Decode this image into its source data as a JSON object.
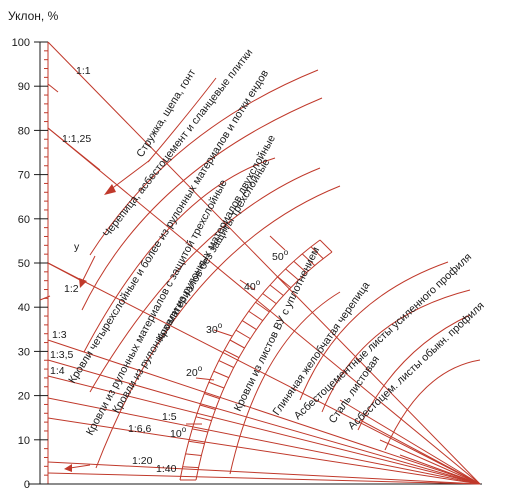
{
  "axis": {
    "title": "Уклон, %",
    "ticks": [
      "0",
      "10",
      "20",
      "30",
      "40",
      "50",
      "60",
      "70",
      "80",
      "90",
      "100"
    ]
  },
  "slope_ratios": [
    {
      "id": "r-1-1",
      "text": "1:1"
    },
    {
      "id": "r-1-125",
      "text": "1:1,25"
    },
    {
      "id": "r-y",
      "text": "y"
    },
    {
      "id": "r-1-2",
      "text": "1:2"
    },
    {
      "id": "r-1-3",
      "text": "1:3"
    },
    {
      "id": "r-1-35",
      "text": "1:3,5"
    },
    {
      "id": "r-1-4",
      "text": "1:4"
    },
    {
      "id": "r-1-5",
      "text": "1:5"
    },
    {
      "id": "r-1-66",
      "text": "1:6,6"
    },
    {
      "id": "r-1-20",
      "text": "1:20"
    },
    {
      "id": "r-1-40",
      "text": "1:40"
    }
  ],
  "degrees": [
    {
      "id": "d-50",
      "value": "50",
      "sup": "o"
    },
    {
      "id": "d-40",
      "value": "40",
      "sup": "o"
    },
    {
      "id": "d-30",
      "value": "30",
      "sup": "o"
    },
    {
      "id": "d-20",
      "value": "20",
      "sup": "o"
    },
    {
      "id": "d-10",
      "value": "10",
      "sup": "o"
    }
  ],
  "roof_types": [
    {
      "id": "shavings",
      "text": "Стружка, щепа, гонт"
    },
    {
      "id": "tiles",
      "text": "Черепица, асбестоцемент и сланцевые плитки"
    },
    {
      "id": "rolled-4",
      "text": "Кровли четырехслойные и более из рулонных материалов и потки ендов"
    },
    {
      "id": "rolled-3-prot",
      "text": "Кровли из рулонных материалов с защитой трехслойные"
    },
    {
      "id": "rolled-3-noprot",
      "text": "Кровли из рулонных материалов без защиты трехслойные"
    },
    {
      "id": "rolled-2",
      "text": "Кровли из рулонных материалов двухслойные"
    },
    {
      "id": "vu",
      "text": "Кровли из листов ВУ с уплотнением"
    },
    {
      "id": "clay-grooved",
      "text": "Глиняная желобчатая черепица"
    },
    {
      "id": "ac-reinforced",
      "text": "Асбестоцементные листы усиленного профиля"
    },
    {
      "id": "steel",
      "text": "Сталь листовая"
    },
    {
      "id": "ac-ordinary",
      "text": "Асбестоцем. листы обыкн. профиля"
    }
  ]
}
